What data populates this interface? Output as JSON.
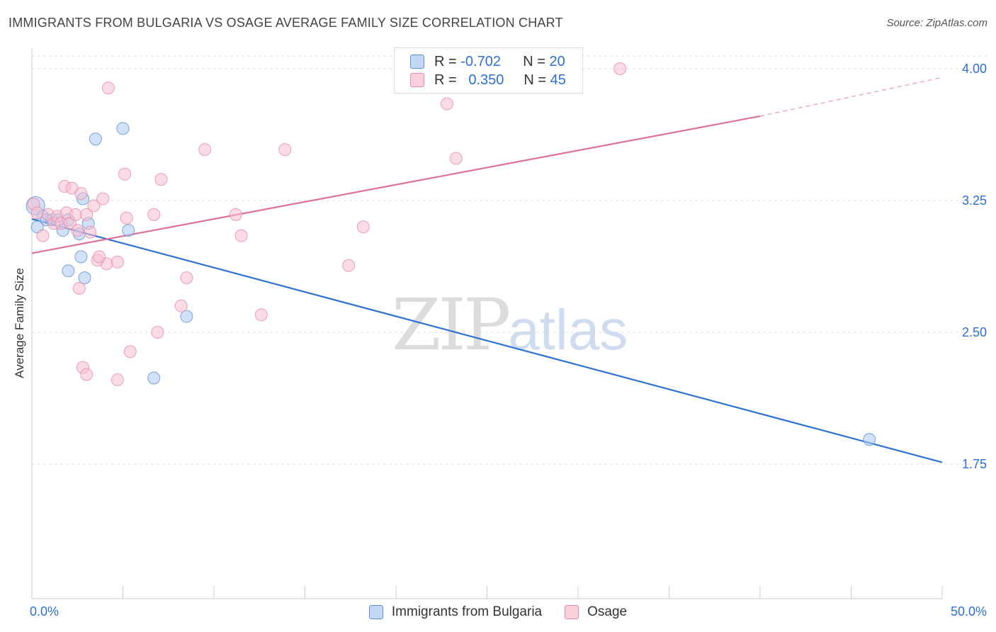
{
  "title": "IMMIGRANTS FROM BULGARIA VS OSAGE AVERAGE FAMILY SIZE CORRELATION CHART",
  "source": "Source: ZipAtlas.com",
  "watermark": {
    "zip": "ZIP",
    "atlas": "atlas"
  },
  "legend": {
    "rows": [
      {
        "r_label": "R =",
        "r_value": "-0.702",
        "n_label": "N =",
        "n_value": "20"
      },
      {
        "r_label": "R =",
        "r_value": "0.350",
        "n_label": "N =",
        "n_value": "45"
      }
    ]
  },
  "colors": {
    "blue_fill": "#a9c8f2",
    "blue_stroke": "#5b8fd9",
    "blue_line": "#2d72d2",
    "pink_fill": "#f7bfd0",
    "pink_stroke": "#e68aa8",
    "pink_line": "#e0709a",
    "tick_label": "#2e6fd8",
    "grid": "#dddddd"
  },
  "chart_data": {
    "type": "scatter",
    "title": "IMMIGRANTS FROM BULGARIA VS OSAGE AVERAGE FAMILY SIZE CORRELATION CHART",
    "xlabel": "",
    "ylabel": "Average Family Size",
    "xlim": [
      0,
      50
    ],
    "ylim": [
      1.0,
      4.15
    ],
    "x_tick_labels": [
      "0.0%",
      "50.0%"
    ],
    "y_ticks": [
      1.75,
      2.5,
      3.25,
      4.0
    ],
    "y_tick_labels": [
      "1.75",
      "2.50",
      "3.25",
      "4.00"
    ],
    "grid": true,
    "series": [
      {
        "name": "Immigrants from Bulgaria",
        "color": "blue",
        "points": [
          [
            0.2,
            3.22
          ],
          [
            0.3,
            3.1
          ],
          [
            0.6,
            3.16
          ],
          [
            0.8,
            3.14
          ],
          [
            1.1,
            3.14
          ],
          [
            1.4,
            3.14
          ],
          [
            1.7,
            3.08
          ],
          [
            2.0,
            3.14
          ],
          [
            2.8,
            3.26
          ],
          [
            3.1,
            3.12
          ],
          [
            3.5,
            3.6
          ],
          [
            5.0,
            3.66
          ],
          [
            2.7,
            2.93
          ],
          [
            2.0,
            2.85
          ],
          [
            2.9,
            2.81
          ],
          [
            5.3,
            3.08
          ],
          [
            8.5,
            2.59
          ],
          [
            6.7,
            2.24
          ],
          [
            46.0,
            1.89
          ],
          [
            2.6,
            3.06
          ]
        ],
        "trend": {
          "x": [
            0.0,
            50.0
          ],
          "y": [
            3.145,
            1.76
          ]
        }
      },
      {
        "name": "Osage",
        "color": "pink",
        "points": [
          [
            0.1,
            3.23
          ],
          [
            0.3,
            3.18
          ],
          [
            0.6,
            3.05
          ],
          [
            0.9,
            3.17
          ],
          [
            1.2,
            3.12
          ],
          [
            1.4,
            3.16
          ],
          [
            1.6,
            3.12
          ],
          [
            1.9,
            3.18
          ],
          [
            2.1,
            3.12
          ],
          [
            2.4,
            3.17
          ],
          [
            1.8,
            3.33
          ],
          [
            2.2,
            3.32
          ],
          [
            2.7,
            3.29
          ],
          [
            3.2,
            3.07
          ],
          [
            3.4,
            3.22
          ],
          [
            3.9,
            3.26
          ],
          [
            3.0,
            3.17
          ],
          [
            2.5,
            3.08
          ],
          [
            4.2,
            3.89
          ],
          [
            4.1,
            2.89
          ],
          [
            4.7,
            2.9
          ],
          [
            3.6,
            2.91
          ],
          [
            2.6,
            2.75
          ],
          [
            5.1,
            3.4
          ],
          [
            5.2,
            3.15
          ],
          [
            7.1,
            3.37
          ],
          [
            6.7,
            3.17
          ],
          [
            9.5,
            3.54
          ],
          [
            11.2,
            3.17
          ],
          [
            11.5,
            3.05
          ],
          [
            8.2,
            2.65
          ],
          [
            8.5,
            2.81
          ],
          [
            6.9,
            2.5
          ],
          [
            5.4,
            2.39
          ],
          [
            4.7,
            2.23
          ],
          [
            2.8,
            2.3
          ],
          [
            3.0,
            2.26
          ],
          [
            13.9,
            3.54
          ],
          [
            12.6,
            2.6
          ],
          [
            17.4,
            2.88
          ],
          [
            18.2,
            3.1
          ],
          [
            22.8,
            3.8
          ],
          [
            23.3,
            3.49
          ],
          [
            32.3,
            4.0
          ],
          [
            3.7,
            2.93
          ]
        ],
        "trend": {
          "x": [
            0.0,
            40.0
          ],
          "y": [
            2.95,
            3.73
          ]
        },
        "trend_dashed": {
          "x": [
            40.0,
            50.0
          ],
          "y": [
            3.73,
            3.95
          ]
        }
      }
    ]
  },
  "bottom_legend": {
    "items": [
      {
        "label": "Immigrants from Bulgaria"
      },
      {
        "label": "Osage"
      }
    ]
  }
}
